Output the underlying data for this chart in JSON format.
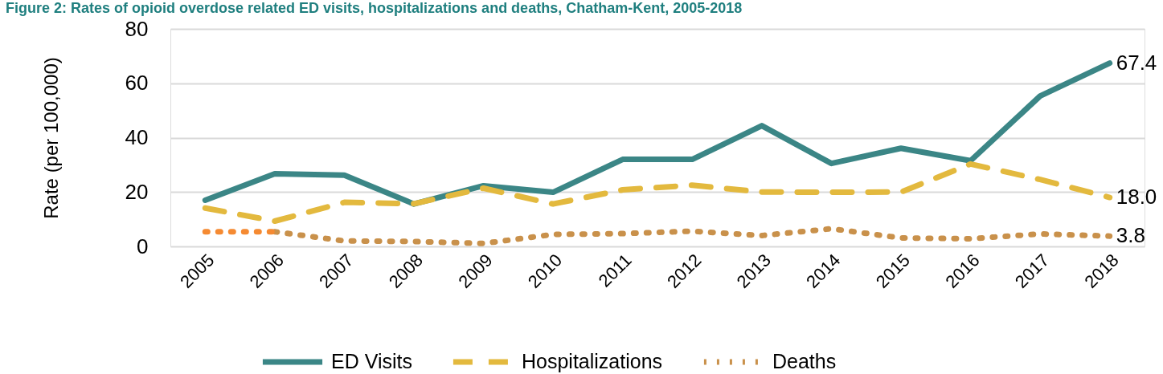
{
  "chart_data": {
    "type": "line",
    "title": "Figure 2: Rates of opioid overdose related ED visits, hospitalizations and deaths, Chatham-Kent, 2005-2018",
    "ylabel": "Rate (per 100,000)",
    "categories": [
      "2005",
      "2006",
      "2007",
      "2008",
      "2009",
      "2010",
      "2011",
      "2012",
      "2013",
      "2014",
      "2015",
      "2016",
      "2017",
      "2018"
    ],
    "series": [
      {
        "name": "ED Visits",
        "color": "#3b8686",
        "line_style": "solid",
        "values": [
          17.0,
          26.7,
          26.2,
          15.6,
          22.3,
          19.9,
          32.0,
          32.0,
          44.4,
          30.5,
          36.1,
          31.5,
          55.3,
          67.4
        ],
        "value_labels": [
          null,
          null,
          null,
          null,
          null,
          null,
          null,
          null,
          null,
          null,
          null,
          null,
          null,
          "67.4"
        ]
      },
      {
        "name": "Hospitalizations",
        "color": "#e3b93e",
        "line_style": "dashed",
        "values": [
          14.1,
          9.3,
          16.2,
          15.7,
          21.4,
          15.6,
          20.8,
          22.5,
          20.0,
          19.9,
          20.0,
          30.3,
          24.6,
          18.0
        ],
        "value_labels": [
          null,
          null,
          null,
          null,
          null,
          null,
          null,
          null,
          null,
          null,
          null,
          null,
          null,
          "18.0"
        ]
      },
      {
        "name": "Deaths",
        "color": "#c9914b",
        "line_style": "dotted",
        "values": [
          null,
          5.4,
          2.0,
          1.8,
          1.1,
          4.4,
          4.7,
          5.6,
          4.0,
          6.5,
          3.1,
          2.8,
          4.6,
          3.8
        ],
        "value_labels": [
          null,
          null,
          null,
          null,
          null,
          null,
          null,
          null,
          null,
          null,
          null,
          null,
          null,
          "3.8"
        ]
      },
      {
        "color": "#f58a32",
        "line_style": "dotted",
        "values": [
          5.4,
          5.4,
          null,
          null,
          null,
          null,
          null,
          null,
          null,
          null,
          null,
          null,
          null,
          null
        ]
      }
    ],
    "ylim": [
      0,
      80
    ],
    "yticks": [
      0,
      20,
      40,
      60,
      80
    ],
    "grid": "y",
    "legend": "bottom"
  }
}
